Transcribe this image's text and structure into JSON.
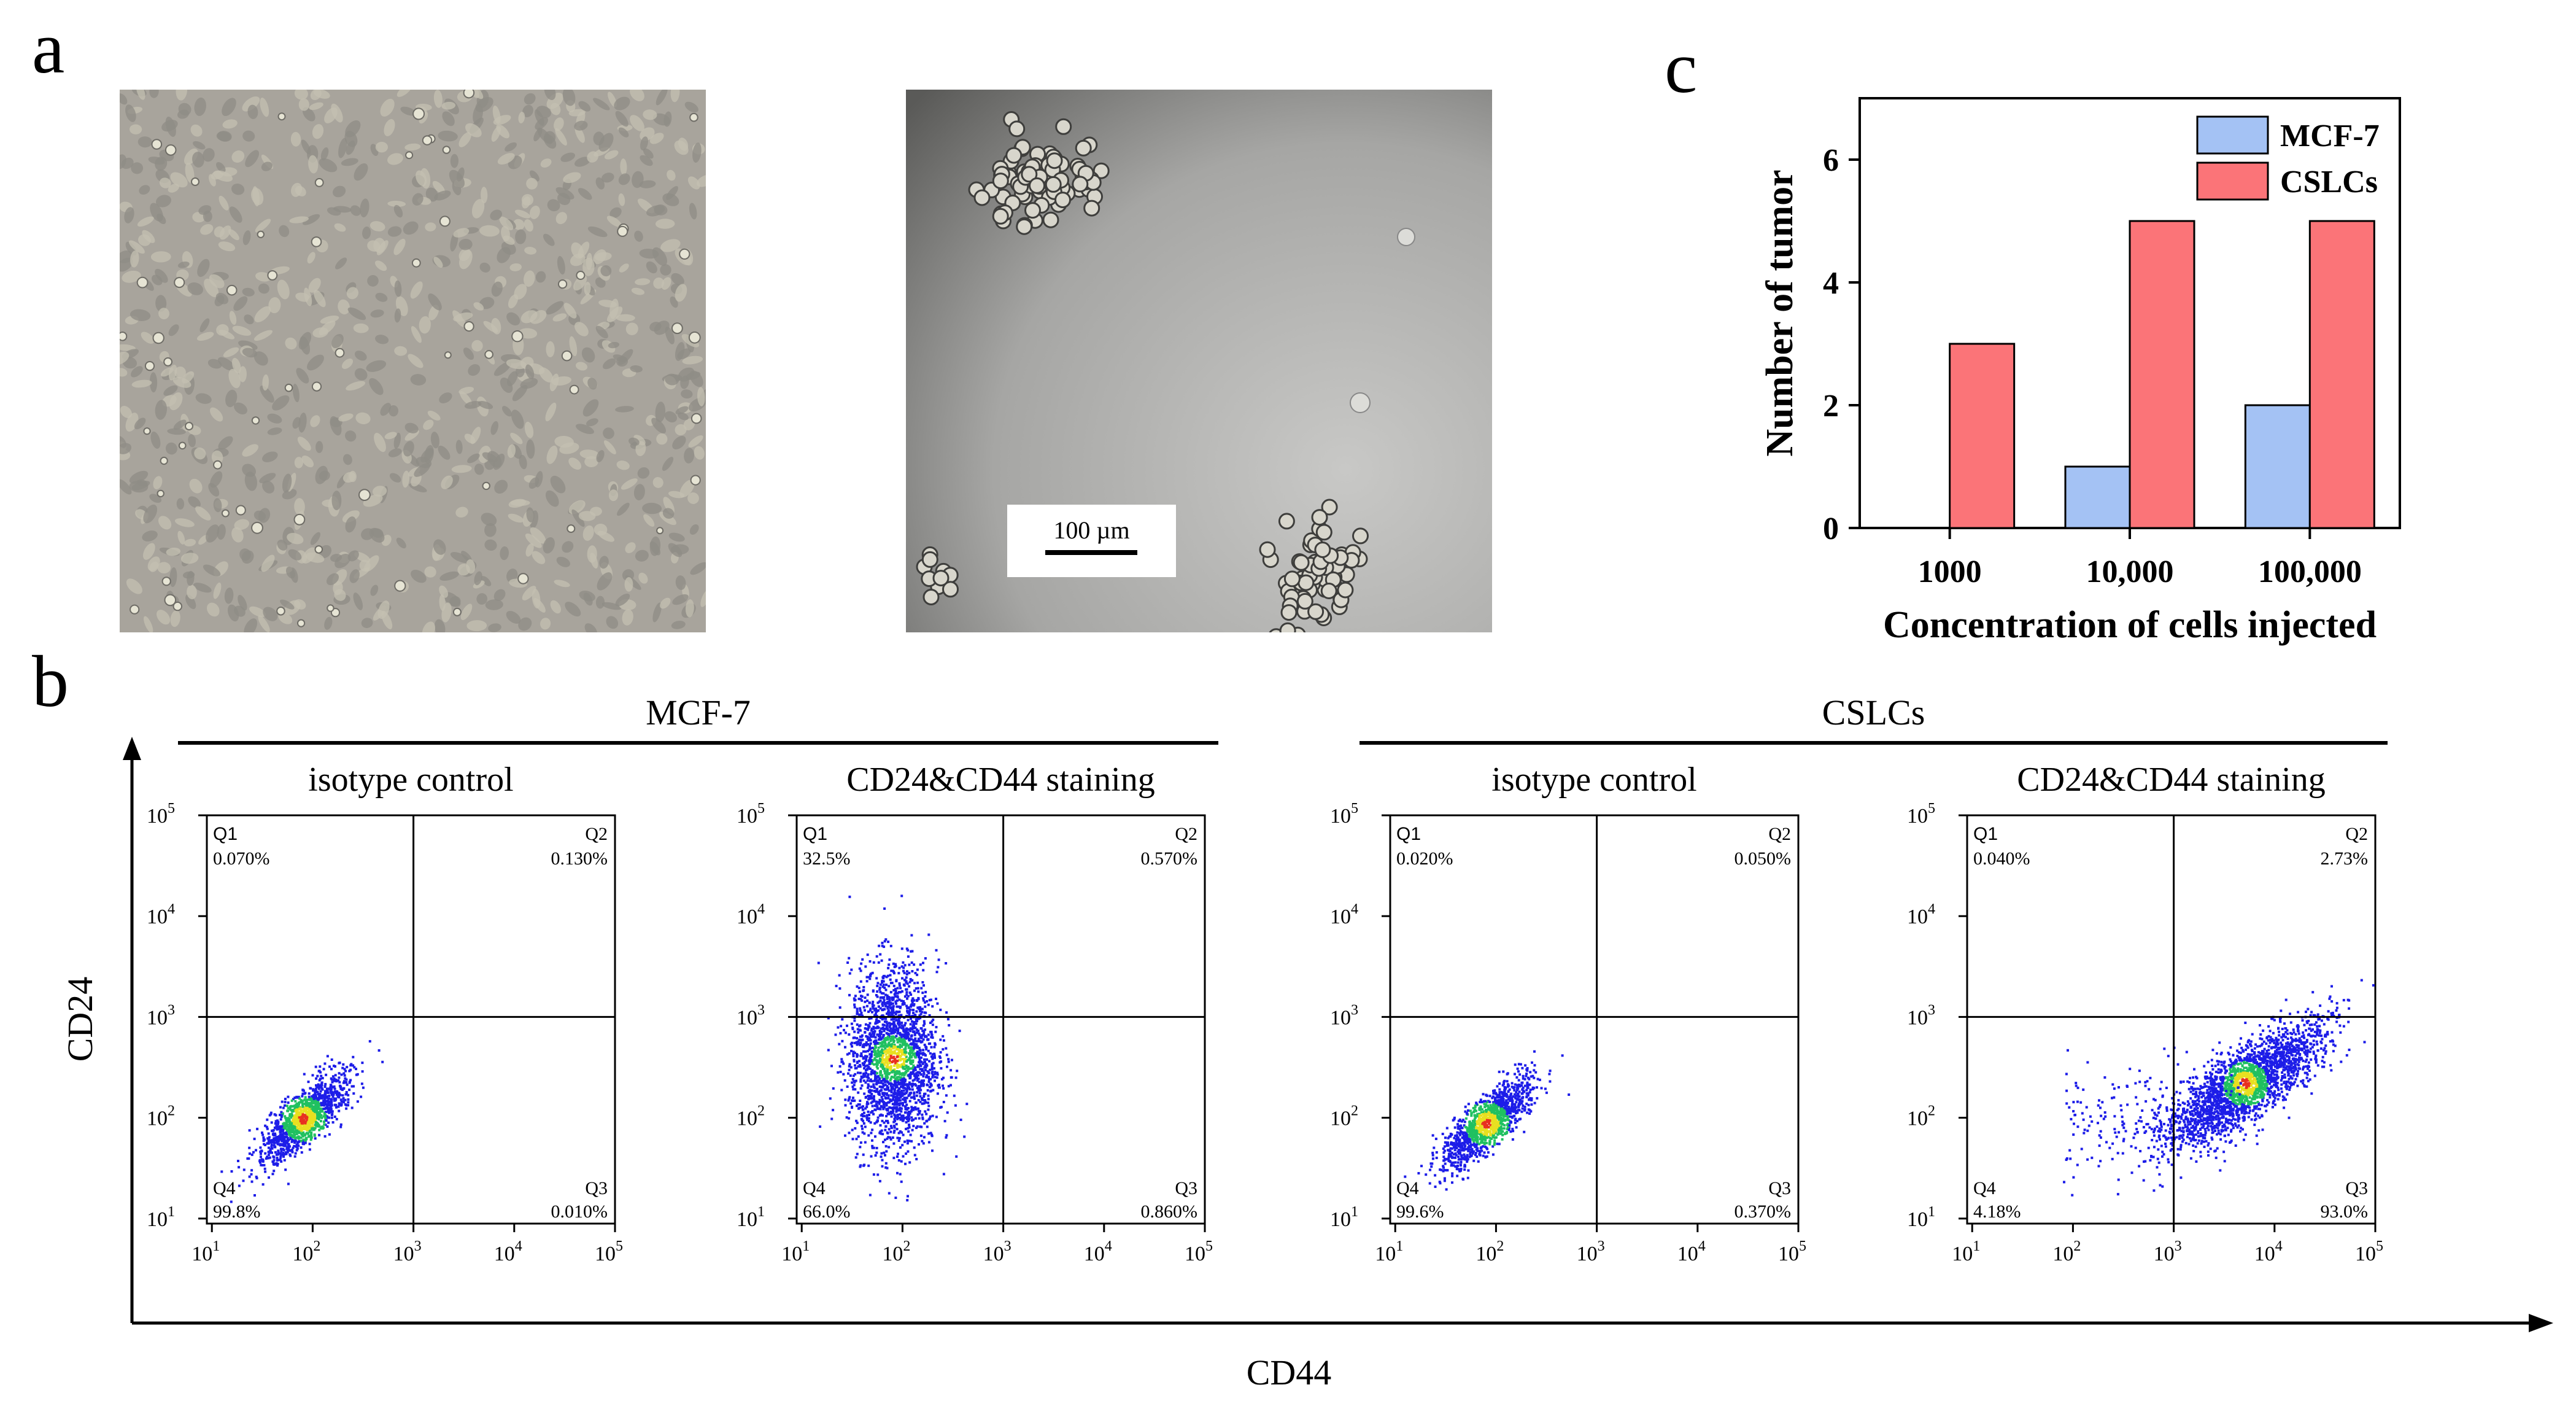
{
  "panel_labels": {
    "a": "a",
    "b": "b",
    "c": "c"
  },
  "panel_a": {
    "scale_bar_label": "100 µm",
    "colors": {
      "monolayer_bg": "#a8a49c",
      "sphere_bg_light": "#c8c8c6",
      "sphere_bg_dark": "#5a5a58",
      "cell": "#d6d3c6"
    }
  },
  "panel_b": {
    "x_axis_label": "CD44",
    "y_axis_label": "CD24",
    "groups": [
      "MCF-7",
      "CSLCs"
    ],
    "plot_titles": [
      "isotype control",
      "CD24&CD44 staining",
      "isotype control",
      "CD24&CD44 staining"
    ],
    "tick_labels": [
      "10",
      "10",
      "10",
      "10",
      "10"
    ],
    "tick_exponents": [
      "1",
      "2",
      "3",
      "4",
      "5"
    ],
    "quadrant_names": [
      "Q1",
      "Q2",
      "Q3",
      "Q4"
    ],
    "plots": [
      {
        "Q1": "0.070%",
        "Q2": "0.130%",
        "Q3": "0.010%",
        "Q4": "99.8%"
      },
      {
        "Q1": "32.5%",
        "Q2": "0.570%",
        "Q3": "0.860%",
        "Q4": "66.0%"
      },
      {
        "Q1": "0.020%",
        "Q2": "0.050%",
        "Q3": "0.370%",
        "Q4": "99.6%"
      },
      {
        "Q1": "0.040%",
        "Q2": "2.73%",
        "Q3": "93.0%",
        "Q4": "4.18%"
      }
    ],
    "population_centers_log10": [
      {
        "cd44": 1.9,
        "cd24": 2.0
      },
      {
        "cd44": 1.9,
        "cd24": 2.6
      },
      {
        "cd44": 1.9,
        "cd24": 1.95
      },
      {
        "cd44": 3.7,
        "cd24": 2.35
      }
    ],
    "colors": {
      "dot": "#1d1de8",
      "density_mid": "#20c060",
      "density_high": "#e8e020",
      "density_peak": "#e83020"
    }
  },
  "chart_data": {
    "type": "bar",
    "categories": [
      "1000",
      "10,000",
      "100,000"
    ],
    "series": [
      {
        "name": "MCF-7",
        "values": [
          0,
          1,
          2
        ],
        "color": "#a4c2f4"
      },
      {
        "name": "CSLCs",
        "values": [
          3,
          5,
          5
        ],
        "color": "#fb7478"
      }
    ],
    "xlabel": "Concentration of cells injected",
    "ylabel": "Number of tumor",
    "ylim": [
      0,
      7
    ],
    "yticks": [
      "0",
      "2",
      "4",
      "6"
    ],
    "legend_position": "top-right",
    "grid": false
  }
}
